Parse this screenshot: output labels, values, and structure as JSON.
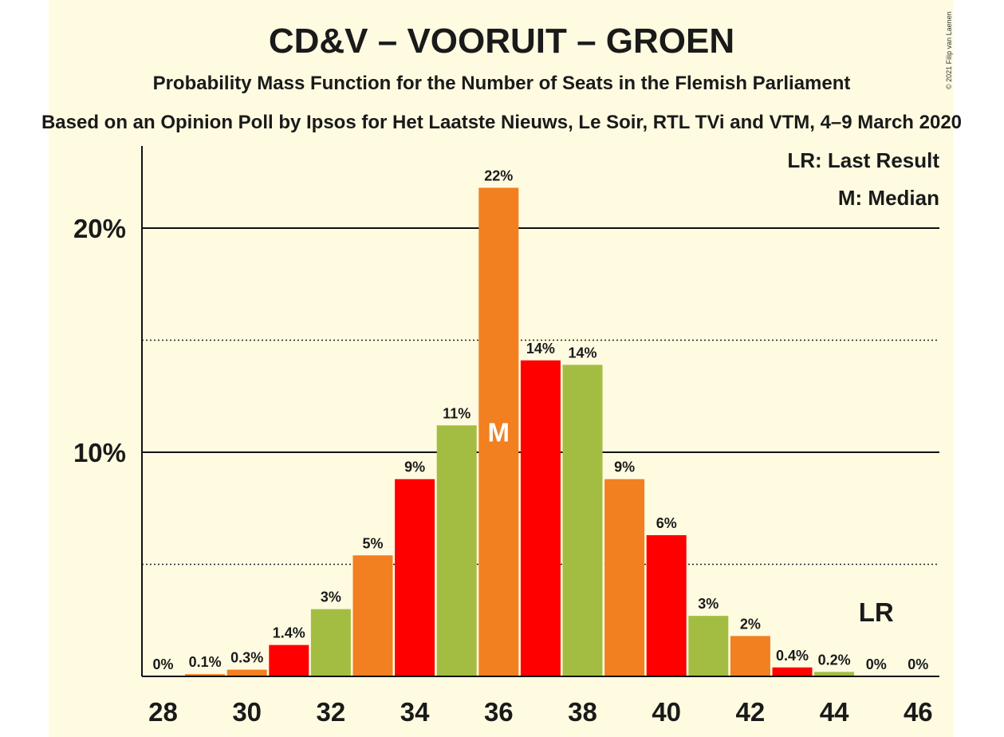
{
  "colors": {
    "background": "#fffbe1",
    "green": "#a3bd42",
    "orange": "#f27f20",
    "red": "#fe0000",
    "text": "#1a1a1a"
  },
  "header": {
    "title": "CD&V – VOORUIT – GROEN",
    "subtitle": "Probability Mass Function for the Number of Seats in the Flemish Parliament",
    "source": "Based on an Opinion Poll by Ipsos for Het Laatste Nieuws, Le Soir, RTL TVi and VTM, 4–9 March 2020",
    "copyright": "© 2021 Filip van Laenen"
  },
  "legend": {
    "last_result": "LR: Last Result",
    "median": "M: Median"
  },
  "chart_data": {
    "type": "bar",
    "x": [
      28,
      29,
      30,
      31,
      32,
      33,
      34,
      35,
      36,
      37,
      38,
      39,
      40,
      41,
      42,
      43,
      44,
      45,
      46
    ],
    "values": [
      0,
      0.1,
      0.3,
      1.4,
      3,
      5.4,
      8.8,
      11.2,
      21.8,
      14.1,
      13.9,
      8.8,
      6.3,
      2.7,
      1.8,
      0.4,
      0.2,
      0,
      0
    ],
    "bar_labels": [
      "0%",
      "0.1%",
      "0.3%",
      "1.4%",
      "3%",
      "5%",
      "9%",
      "11%",
      "22%",
      "14%",
      "14%",
      "9%",
      "6%",
      "3%",
      "2%",
      "0.4%",
      "0.2%",
      "0%",
      "0%"
    ],
    "bar_colors": [
      "green",
      "orange",
      "orange",
      "red",
      "green",
      "orange",
      "red",
      "green",
      "orange",
      "red",
      "green",
      "orange",
      "red",
      "green",
      "orange",
      "red",
      "green",
      "orange",
      "red"
    ],
    "x_tick_labels": [
      "28",
      "30",
      "32",
      "34",
      "36",
      "38",
      "40",
      "42",
      "44",
      "46"
    ],
    "y_tick_labels": [
      "10%",
      "20%"
    ],
    "ylim": [
      0,
      23.5
    ],
    "median_seat": 36,
    "median_marker": "M",
    "last_result_seat": 45,
    "last_result_marker": "LR",
    "xlabel": "",
    "ylabel": ""
  }
}
